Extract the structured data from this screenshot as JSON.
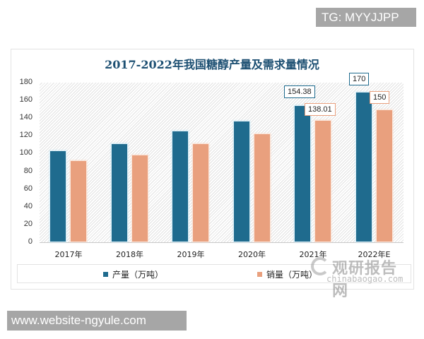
{
  "overlay": {
    "tg_label": "TG: MYYJJPP",
    "website_label": "www.website-ngyule.com"
  },
  "watermark": {
    "cn": "观研报告网",
    "en": "chinabaogao.com"
  },
  "colors": {
    "production": "#1f6b8e",
    "sales": "#e9a07e",
    "title": "#1c4f72"
  },
  "chart_data": {
    "type": "bar",
    "title": "2017-2022年我国糖醇产量及需求量情况",
    "xlabel": "",
    "ylabel": "",
    "ylim": [
      0,
      180
    ],
    "yticks": [
      0,
      20,
      40,
      60,
      80,
      100,
      120,
      140,
      160,
      180
    ],
    "categories": [
      "2017年",
      "2018年",
      "2019年",
      "2020年",
      "2021年",
      "2022年E"
    ],
    "series": [
      {
        "name": "产量（万吨）",
        "values": [
          103.5,
          111.5,
          126,
          137,
          154.38,
          170
        ]
      },
      {
        "name": "销量（万吨）",
        "values": [
          92,
          99,
          111.5,
          122.5,
          138.01,
          150
        ]
      }
    ],
    "data_labels": [
      {
        "category": "2021年",
        "series": "产量（万吨）",
        "text": "154.38"
      },
      {
        "category": "2021年",
        "series": "销量（万吨）",
        "text": "138.01"
      },
      {
        "category": "2022年E",
        "series": "产量（万吨）",
        "text": "170"
      },
      {
        "category": "2022年E",
        "series": "销量（万吨）",
        "text": "150"
      }
    ],
    "legend_position": "bottom",
    "grid": false,
    "background": "hatched"
  }
}
